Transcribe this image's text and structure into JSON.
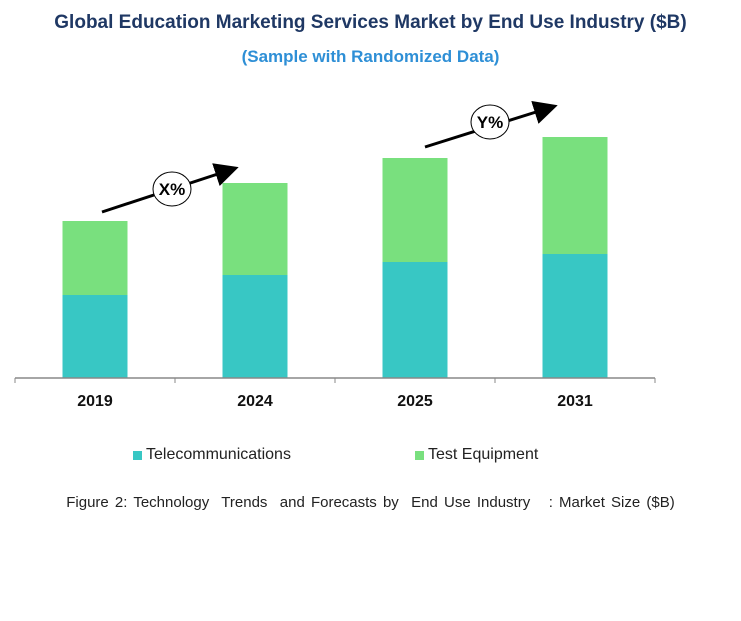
{
  "chart_data": {
    "type": "bar",
    "stacked": true,
    "title": "Global Education Marketing Services Market by End Use Industry ($B)",
    "subtitle": "(Sample with Randomized Data)",
    "categories": [
      "2019",
      "2024",
      "2025",
      "2031"
    ],
    "series": [
      {
        "name": "Telecommunications",
        "values": [
          8.3,
          10.3,
          11.6,
          12.4
        ],
        "color": "#38c7c4"
      },
      {
        "name": "Test Equipment",
        "values": [
          7.4,
          9.2,
          10.4,
          11.7
        ],
        "color": "#79e07e"
      }
    ],
    "ylim": [
      0,
      26
    ],
    "grid": false,
    "legend": "bottom",
    "annotations": [
      {
        "label": "X%",
        "from": "2019",
        "to": "2024"
      },
      {
        "label": "Y%",
        "from": "2025",
        "to": "2031"
      }
    ],
    "caption": "Figure 2: Technology  Trends  and Forecasts by  End Use Industry   : Market Size ($B)"
  }
}
